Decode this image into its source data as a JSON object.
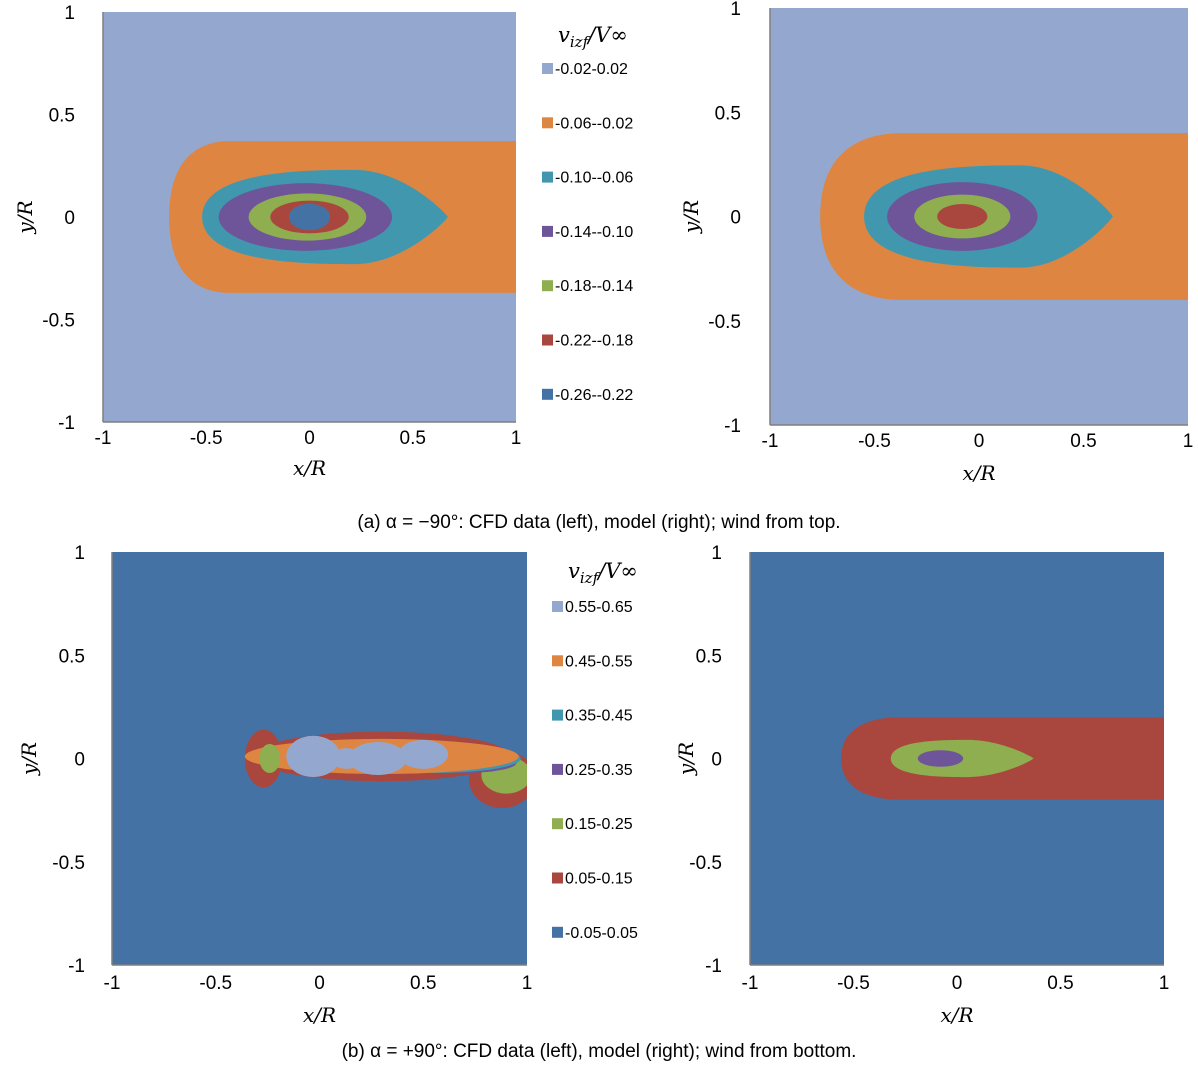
{
  "colors": {
    "lightblue": "#94A8CF",
    "orange": "#DE8542",
    "teal": "#4198AE",
    "purple": "#6E559A",
    "green": "#8FAE4F",
    "red": "#A9473F",
    "blue": "#4472A5",
    "axis": "#7f7f7f"
  },
  "captions": {
    "a": "(a) α = −90°: CFD data (left), model (right); wind from top.",
    "b": "(b) α = +90°: CFD data (left), model (right); wind from bottom."
  },
  "chart_data": [
    {
      "id": "a-left",
      "type": "contour",
      "panel": "a",
      "xlabel": "x/R",
      "ylabel": "y/R",
      "xlim": [
        -1,
        1
      ],
      "ylim": [
        -1,
        1
      ],
      "xticks": [
        "-1",
        "-0.5",
        "0",
        "0.5",
        "1"
      ],
      "yticks": [
        "1",
        "0.5",
        "0",
        "-0.5",
        "-1"
      ],
      "background": "lightblue",
      "legend": {
        "title": "v_izf/V∞",
        "entries": [
          {
            "label": "-0.02-0.02",
            "color": "lightblue"
          },
          {
            "label": "-0.06--0.02",
            "color": "orange"
          },
          {
            "label": "-0.10--0.06",
            "color": "teal"
          },
          {
            "label": "-0.14--0.10",
            "color": "purple"
          },
          {
            "label": "-0.18--0.14",
            "color": "green"
          },
          {
            "label": "-0.22--0.18",
            "color": "red"
          },
          {
            "label": "-0.26--0.22",
            "color": "blue"
          }
        ]
      },
      "regions": [
        {
          "band": "-0.06--0.02",
          "color": "orange",
          "shape": "tail",
          "cx": 0,
          "cy": 0,
          "xl": -0.68,
          "hy": 0.37,
          "nose": 0.3
        },
        {
          "band": "-0.10--0.06",
          "color": "teal",
          "shape": "teardrop",
          "cx": 0,
          "cy": 0,
          "xl": -0.52,
          "xr": 0.67,
          "hy": 0.23,
          "xm": 0.22
        },
        {
          "band": "-0.14--0.10",
          "color": "purple",
          "shape": "ellipse",
          "cx": -0.02,
          "cy": 0,
          "rx": 0.42,
          "ry": 0.165
        },
        {
          "band": "-0.18--0.14",
          "color": "green",
          "shape": "ellipse",
          "cx": -0.01,
          "cy": 0,
          "rx": 0.285,
          "ry": 0.115
        },
        {
          "band": "-0.22--0.18",
          "color": "red",
          "shape": "ellipse",
          "cx": 0,
          "cy": 0,
          "rx": 0.19,
          "ry": 0.08
        },
        {
          "band": "-0.26--0.22",
          "color": "blue",
          "shape": "ellipse",
          "cx": 0,
          "cy": 0,
          "rx": 0.1,
          "ry": 0.065
        }
      ]
    },
    {
      "id": "a-right",
      "type": "contour",
      "panel": "a",
      "xlabel": "x/R",
      "ylabel": "y/R",
      "xlim": [
        -1,
        1
      ],
      "ylim": [
        -1,
        1
      ],
      "xticks": [
        "-1",
        "-0.5",
        "0",
        "0.5",
        "1"
      ],
      "yticks": [
        "1",
        "0.5",
        "0",
        "-0.5",
        "-1"
      ],
      "background": "lightblue",
      "regions": [
        {
          "band": "-0.06--0.02",
          "color": "orange",
          "shape": "tail",
          "cx": -0.05,
          "cy": 0,
          "xl": -0.76,
          "hy": 0.4,
          "nose": 0.4
        },
        {
          "band": "-0.10--0.06",
          "color": "teal",
          "shape": "teardrop",
          "cx": -0.05,
          "cy": 0,
          "xl": -0.55,
          "xr": 0.64,
          "hy": 0.245,
          "xm": 0.2
        },
        {
          "band": "-0.14--0.10",
          "color": "purple",
          "shape": "ellipse",
          "cx": -0.08,
          "cy": 0,
          "rx": 0.36,
          "ry": 0.165
        },
        {
          "band": "-0.18--0.14",
          "color": "green",
          "shape": "ellipse",
          "cx": -0.08,
          "cy": 0,
          "rx": 0.23,
          "ry": 0.105
        },
        {
          "band": "-0.22--0.18",
          "color": "red",
          "shape": "ellipse",
          "cx": -0.08,
          "cy": 0,
          "rx": 0.12,
          "ry": 0.06
        }
      ]
    },
    {
      "id": "b-left",
      "type": "contour",
      "panel": "b",
      "xlabel": "x/R",
      "ylabel": "y/R",
      "xlim": [
        -1,
        1
      ],
      "ylim": [
        -1,
        1
      ],
      "xticks": [
        "-1",
        "-0.5",
        "0",
        "0.5",
        "1"
      ],
      "yticks": [
        "1",
        "0.5",
        "0",
        "-0.5",
        "-1"
      ],
      "background": "blue",
      "legend": {
        "title": "v_izf/V∞",
        "entries": [
          {
            "label": "0.55-0.65",
            "color": "lightblue"
          },
          {
            "label": "0.45-0.55",
            "color": "orange"
          },
          {
            "label": "0.35-0.45",
            "color": "teal"
          },
          {
            "label": "0.25-0.35",
            "color": "purple"
          },
          {
            "label": "0.15-0.25",
            "color": "green"
          },
          {
            "label": "0.05-0.15",
            "color": "red"
          },
          {
            "label": "-0.05-0.05",
            "color": "blue"
          }
        ]
      },
      "regions": [
        {
          "band": "0.05-0.15",
          "color": "red",
          "shape": "blob",
          "cx": -0.27,
          "cy": 0,
          "rx": 0.09,
          "ry": 0.14
        },
        {
          "band": "0.05-0.15",
          "color": "red",
          "shape": "ellipse",
          "cx": 0.3,
          "cy": 0.01,
          "rx": 0.62,
          "ry": 0.12
        },
        {
          "band": "0.05-0.15",
          "color": "red",
          "shape": "ellipse",
          "cx": 0.88,
          "cy": -0.1,
          "rx": 0.16,
          "ry": 0.14
        },
        {
          "band": "0.15-0.25",
          "color": "green",
          "shape": "ellipse",
          "cx": 0.3,
          "cy": 0.0,
          "rx": 0.62,
          "ry": 0.05
        },
        {
          "band": "0.15-0.25",
          "color": "green",
          "shape": "ellipse",
          "cx": 0.9,
          "cy": -0.08,
          "rx": 0.12,
          "ry": 0.09
        },
        {
          "band": "0.25-0.35",
          "color": "purple",
          "shape": "ellipse",
          "cx": 0.7,
          "cy": -0.02,
          "rx": 0.25,
          "ry": 0.05
        },
        {
          "band": "0.35-0.45",
          "color": "teal",
          "shape": "ellipse",
          "cx": 0.55,
          "cy": 0.0,
          "rx": 0.42,
          "ry": 0.07
        },
        {
          "band": "0.45-0.55",
          "color": "orange",
          "shape": "ellipse",
          "cx": 0.3,
          "cy": 0.01,
          "rx": 0.66,
          "ry": 0.085
        },
        {
          "band": "0.55-0.65",
          "color": "lightblue",
          "shape": "ellipse",
          "cx": -0.03,
          "cy": 0.01,
          "rx": 0.13,
          "ry": 0.1
        },
        {
          "band": "0.55-0.65",
          "color": "lightblue",
          "shape": "ellipse",
          "cx": 0.28,
          "cy": 0.0,
          "rx": 0.14,
          "ry": 0.08
        },
        {
          "band": "0.55-0.65",
          "color": "lightblue",
          "shape": "ellipse",
          "cx": 0.5,
          "cy": 0.02,
          "rx": 0.12,
          "ry": 0.07
        },
        {
          "band": "0.55-0.65",
          "color": "lightblue",
          "shape": "ellipse",
          "cx": 0.13,
          "cy": 0.0,
          "rx": 0.08,
          "ry": 0.05
        },
        {
          "band": "0.15-0.25",
          "color": "green",
          "shape": "ellipse",
          "cx": -0.24,
          "cy": 0.0,
          "rx": 0.05,
          "ry": 0.07
        }
      ]
    },
    {
      "id": "b-right",
      "type": "contour",
      "panel": "b",
      "xlabel": "x/R",
      "ylabel": "y/R",
      "xlim": [
        -1,
        1
      ],
      "ylim": [
        -1,
        1
      ],
      "xticks": [
        "-1",
        "-0.5",
        "0",
        "0.5",
        "1"
      ],
      "yticks": [
        "1",
        "0.5",
        "0",
        "-0.5",
        "-1"
      ],
      "background": "blue",
      "regions": [
        {
          "band": "0.05-0.15",
          "color": "red",
          "shape": "tail",
          "cx": -0.05,
          "cy": 0,
          "xl": -0.56,
          "hy": 0.2,
          "nose": 0.3
        },
        {
          "band": "0.15-0.25",
          "color": "green",
          "shape": "teardrop",
          "cx": -0.05,
          "cy": 0,
          "xl": -0.32,
          "xr": 0.37,
          "hy": 0.09,
          "xm": 0.05
        },
        {
          "band": "0.25-0.35",
          "color": "purple",
          "shape": "ellipse",
          "cx": -0.08,
          "cy": 0,
          "rx": 0.11,
          "ry": 0.04
        }
      ]
    }
  ]
}
